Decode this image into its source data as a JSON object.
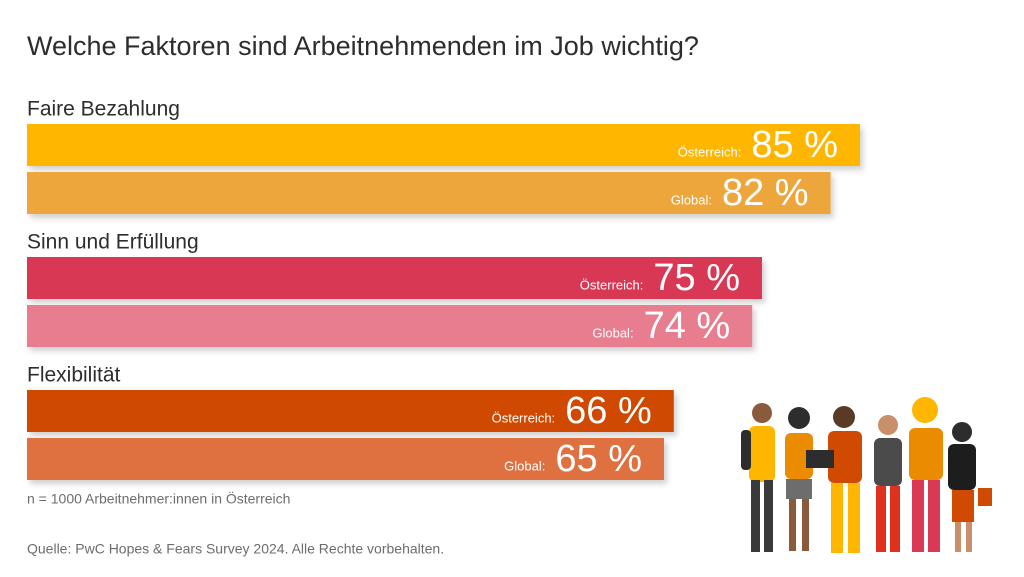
{
  "chart_data": {
    "type": "bar",
    "title": "Welche Faktoren sind Arbeitnehmenden im Job wichtig?",
    "categories": [
      "Faire Bezahlung",
      "Sinn und Erfüllung",
      "Flexibilität"
    ],
    "series": [
      {
        "name": "Österreich:",
        "values": [
          85,
          75,
          66
        ],
        "value_labels": [
          "85 %",
          "75 %",
          "66 %"
        ],
        "colors": [
          "#ffb600",
          "#d93954",
          "#d04a02"
        ]
      },
      {
        "name": "Global:",
        "values": [
          82,
          74,
          65
        ],
        "value_labels": [
          "82 %",
          "74 %",
          "65 %"
        ],
        "colors": [
          "#eda63a",
          "#e77d8e",
          "#df7040"
        ]
      }
    ],
    "xlim": [
      0,
      100
    ],
    "note": "n = 1000 Arbeitnehmer:innen in Österreich",
    "source": "Quelle: PwC Hopes & Fears Survey 2024. Alle Rechte vorbehalten."
  }
}
